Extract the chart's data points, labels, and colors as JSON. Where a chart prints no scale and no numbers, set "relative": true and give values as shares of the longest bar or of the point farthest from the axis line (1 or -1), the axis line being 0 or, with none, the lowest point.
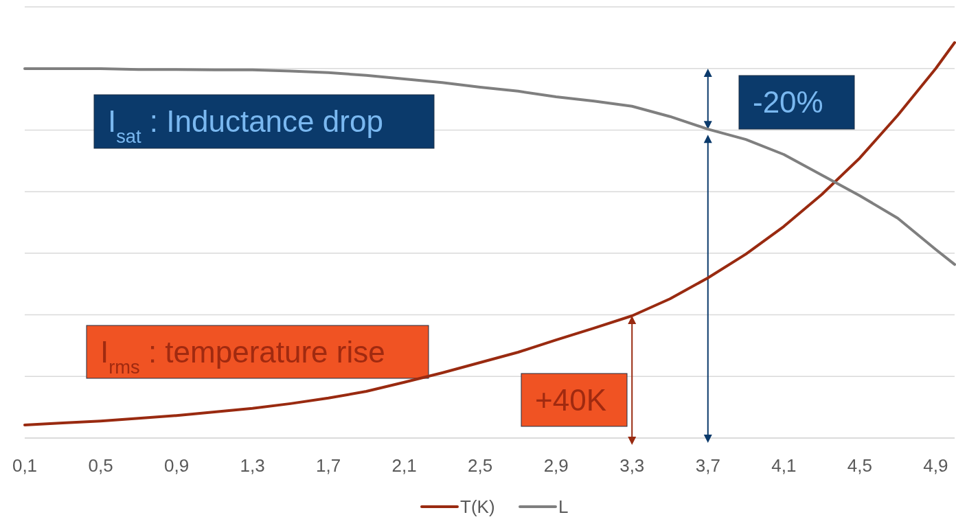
{
  "chart_data": {
    "type": "line",
    "relative": true,
    "grid": "y",
    "legend": "bottom",
    "marker": "none",
    "line_style": "solid",
    "x": [
      0.1,
      0.3,
      0.5,
      0.7,
      0.9,
      1.1,
      1.3,
      1.5,
      1.7,
      1.9,
      2.1,
      2.3,
      2.5,
      2.7,
      2.9,
      3.1,
      3.3,
      3.5,
      3.7,
      3.9,
      4.1,
      4.3,
      4.5,
      4.7,
      4.9,
      5.0
    ],
    "xlim": [
      0.1,
      5.0
    ],
    "xticks": [
      {
        "value": 0.1,
        "label": "0,1"
      },
      {
        "value": 0.5,
        "label": "0,5"
      },
      {
        "value": 0.9,
        "label": "0,9"
      },
      {
        "value": 1.3,
        "label": "1,3"
      },
      {
        "value": 1.7,
        "label": "1,7"
      },
      {
        "value": 2.1,
        "label": "2,1"
      },
      {
        "value": 2.5,
        "label": "2,5"
      },
      {
        "value": 2.9,
        "label": "2,9"
      },
      {
        "value": 3.3,
        "label": "3,3"
      },
      {
        "value": 3.7,
        "label": "3,7"
      },
      {
        "value": 4.1,
        "label": "4,1"
      },
      {
        "value": 4.5,
        "label": "4,5"
      },
      {
        "value": 4.9,
        "label": "4,9"
      }
    ],
    "series": [
      {
        "name": "T(K)",
        "color": "#992a10",
        "values": [
          0.033,
          0.038,
          0.043,
          0.05,
          0.057,
          0.066,
          0.075,
          0.087,
          0.101,
          0.118,
          0.141,
          0.165,
          0.191,
          0.217,
          0.248,
          0.278,
          0.309,
          0.352,
          0.405,
          0.465,
          0.535,
          0.616,
          0.708,
          0.816,
          0.934,
          1
        ]
      },
      {
        "name": "L",
        "color": "#7f7f7f",
        "values": [
          0.934,
          0.934,
          0.934,
          0.932,
          0.932,
          0.931,
          0.931,
          0.928,
          0.924,
          0.917,
          0.908,
          0.899,
          0.887,
          0.877,
          0.863,
          0.852,
          0.839,
          0.813,
          0.781,
          0.755,
          0.717,
          0.665,
          0.613,
          0.556,
          0.477,
          0.439
        ]
      }
    ],
    "annotations": [
      {
        "text": "I$_{sat}$ : Inductance drop"
      },
      {
        "text": "-20%",
        "x": 3.7,
        "y": 0.781
      },
      {
        "text": "I$_{rms}$ : temperature rise"
      },
      {
        "text": "+40K",
        "x": 3.3,
        "y": 0.309
      }
    ]
  }
}
